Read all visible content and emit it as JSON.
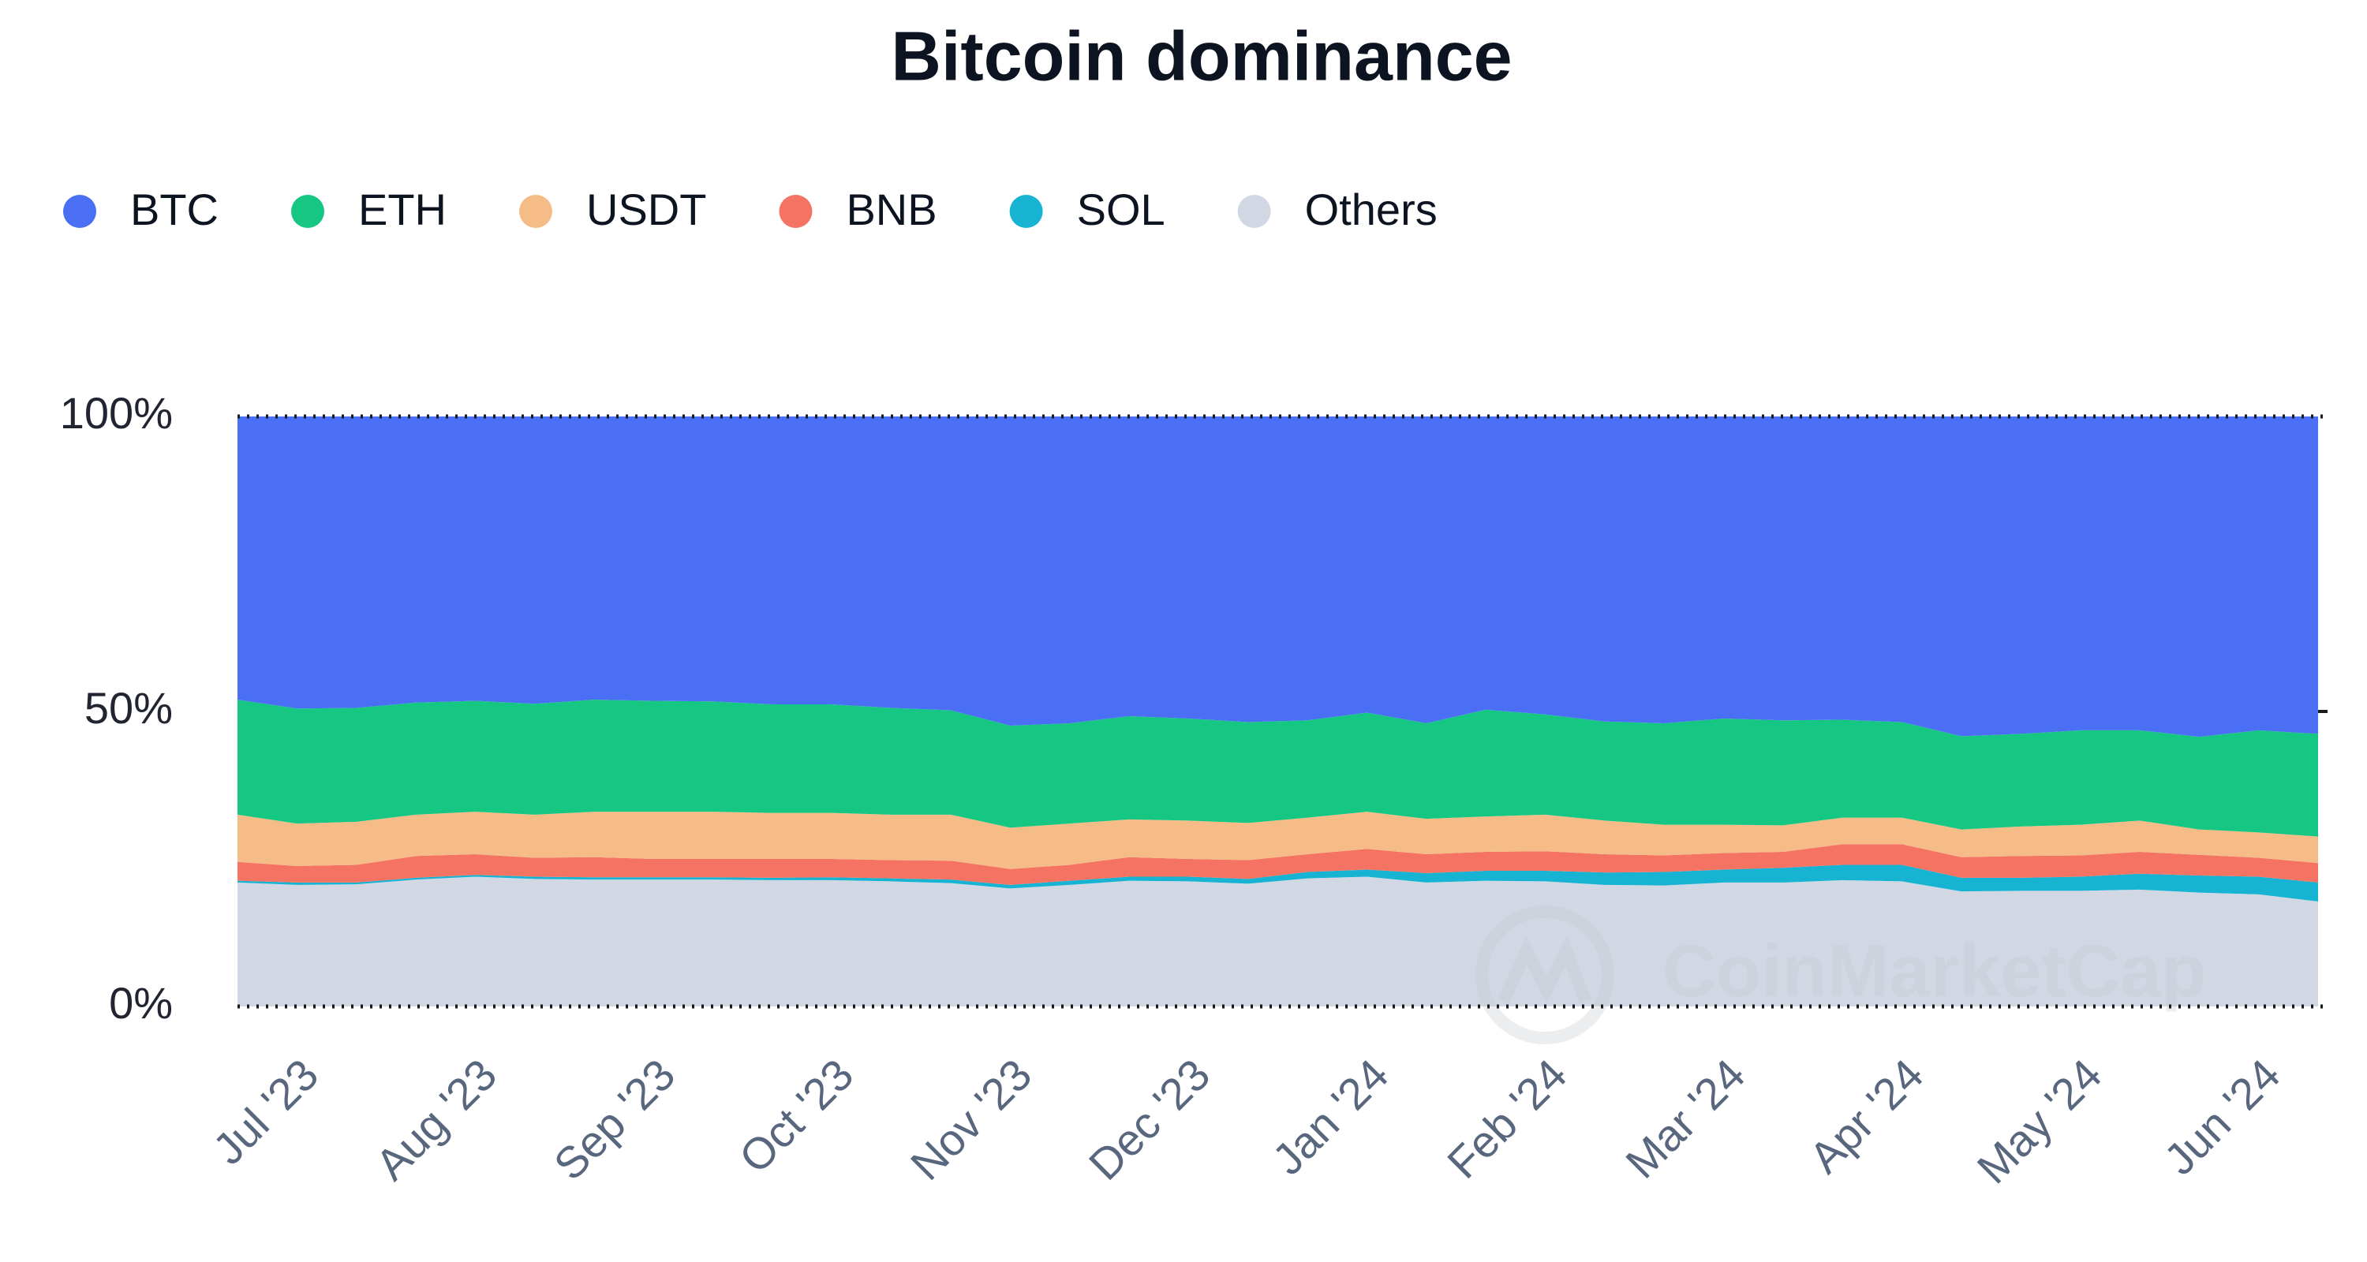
{
  "chart_data": {
    "type": "stacked_area",
    "title": "Bitcoin dominance",
    "watermark": "CoinMarketCap",
    "categories": [
      null,
      "Jul '23",
      null,
      null,
      "Aug '23",
      null,
      null,
      "Sep '23",
      null,
      null,
      "Oct '23",
      null,
      null,
      "Nov '23",
      null,
      null,
      "Dec '23",
      null,
      null,
      "Jan '24",
      null,
      null,
      "Feb '24",
      null,
      null,
      "Mar '24",
      null,
      null,
      "Apr '24",
      null,
      null,
      "May '24",
      null,
      null,
      "Jun '24",
      null
    ],
    "ylim": [
      0,
      100
    ],
    "yticks": [
      {
        "value": 0,
        "label": "0%"
      },
      {
        "value": 50,
        "label": "50%"
      },
      {
        "value": 100,
        "label": "100%"
      }
    ],
    "series": [
      {
        "name": "BTC",
        "color": "#4a6ff5",
        "values": [
          48,
          49.5,
          49.4,
          48.5,
          48.2,
          48.7,
          48,
          48.2,
          48.3,
          48.8,
          48.8,
          49.4,
          49.8,
          52.4,
          52,
          50.8,
          51.2,
          51.8,
          51.5,
          50.2,
          52,
          49.7,
          50.5,
          51.7,
          52,
          51.2,
          51.5,
          51.4,
          51.8,
          54.2,
          53.8,
          53.2,
          53.2,
          54.3,
          53.2,
          53.8
        ]
      },
      {
        "name": "ETH",
        "color": "#16c784",
        "values": [
          19.5,
          19.5,
          19.3,
          19,
          18.8,
          18.8,
          19,
          18.8,
          18.7,
          18.4,
          18.4,
          18.1,
          17.7,
          17.3,
          17,
          17.5,
          17.3,
          17.1,
          16.5,
          16.8,
          16.2,
          18.1,
          17,
          16.8,
          17.2,
          18,
          17.8,
          16.6,
          16.2,
          15.8,
          15.7,
          16,
          15.3,
          15.7,
          17.3,
          17.4
        ]
      },
      {
        "name": "USDT",
        "color": "#f5bc88",
        "values": [
          8,
          7.2,
          7.3,
          7,
          7.2,
          7.3,
          7.7,
          8,
          8,
          7.8,
          7.8,
          7.7,
          7.8,
          7,
          7,
          6.4,
          6.5,
          6.3,
          6.2,
          6.3,
          6,
          6,
          6.2,
          5.7,
          5.2,
          4.8,
          4.5,
          4.5,
          4.5,
          4.7,
          5,
          5.2,
          5.3,
          4.3,
          4.3,
          4.5
        ]
      },
      {
        "name": "BNB",
        "color": "#f57362",
        "values": [
          3.2,
          2.8,
          3,
          3.7,
          3.5,
          3.2,
          3.4,
          3.1,
          3.1,
          3.2,
          3.1,
          3.1,
          3.2,
          2.7,
          2.7,
          3.3,
          3,
          3.2,
          3,
          3.5,
          3.2,
          3.2,
          3.3,
          3.1,
          2.8,
          2.8,
          2.7,
          3.5,
          3.5,
          3.5,
          3.7,
          3.6,
          3.7,
          3.5,
          3.2,
          3.3
        ]
      },
      {
        "name": "SOL",
        "color": "#16b3d3",
        "values": [
          0.3,
          0.4,
          0.3,
          0.3,
          0.3,
          0.4,
          0.4,
          0.4,
          0.4,
          0.4,
          0.5,
          0.5,
          0.6,
          0.6,
          0.7,
          0.7,
          0.8,
          0.8,
          1.1,
          1.2,
          1.6,
          1.7,
          1.8,
          2.1,
          2.3,
          2.2,
          2.5,
          2.6,
          2.8,
          2.3,
          2.2,
          2.4,
          2.7,
          2.9,
          3,
          3.2
        ]
      },
      {
        "name": "Others",
        "color": "#d1d8e4",
        "values": [
          21,
          20.6,
          20.7,
          21.5,
          22,
          21.6,
          21.5,
          21.5,
          21.5,
          21.4,
          21.4,
          21.2,
          20.9,
          20,
          20.6,
          21.3,
          21.2,
          20.8,
          21.7,
          22,
          21,
          21.3,
          21.2,
          20.6,
          20.5,
          21,
          21,
          21.4,
          21.2,
          19.5,
          19.6,
          19.6,
          19.8,
          19.3,
          19,
          17.8
        ]
      }
    ]
  }
}
